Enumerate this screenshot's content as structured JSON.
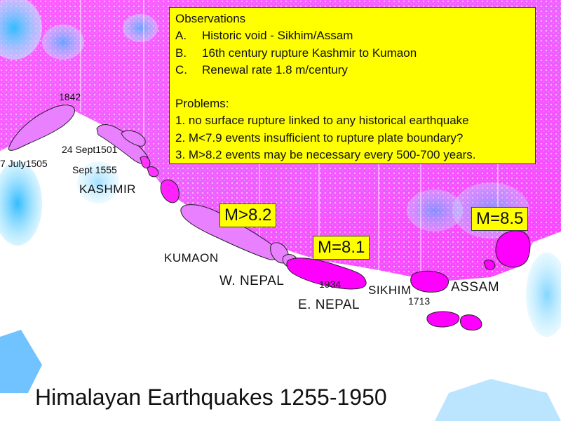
{
  "title": "Himalayan Earthquakes 1255-1950",
  "observations": {
    "heading": "Observations",
    "items": [
      {
        "letter": "A.",
        "text": "Historic void - Sikhim/Assam"
      },
      {
        "letter": "B.",
        "text": "16th century rupture Kashmir to Kumaon"
      },
      {
        "letter": "C.",
        "text": "Renewal rate 1.8 m/century"
      }
    ]
  },
  "problems": {
    "heading": "Problems:",
    "items": [
      "1. no surface rupture linked to any historical earthquake",
      "2. M<7.9 events insufficient to rupture plate boundary?",
      "3. M>8.2 events may be necessary every 500-700 years."
    ]
  },
  "magnitudes": {
    "west": "M>8.2",
    "central": "M=8.1",
    "east": "M=8.5"
  },
  "regions": {
    "kashmir": "KASHMIR",
    "kumaon": "KUMAON",
    "w_nepal": "W. NEPAL",
    "e_nepal": "E. NEPAL",
    "sikhim": "SIKHIM",
    "assam": "ASSAM"
  },
  "dates": {
    "d1842": "1842",
    "d1501": "24 Sept1501",
    "d1505": "7 July1505",
    "d1555": "Sept 1555",
    "d1934": "1934",
    "d1713": "1713"
  },
  "colors": {
    "rupture_fill": "#ff00ff",
    "rupture_light": "#e880ff",
    "callout_bg": "#ffff00",
    "terrain_high": "#ff33ff",
    "terrain_low": "#55ccff"
  }
}
